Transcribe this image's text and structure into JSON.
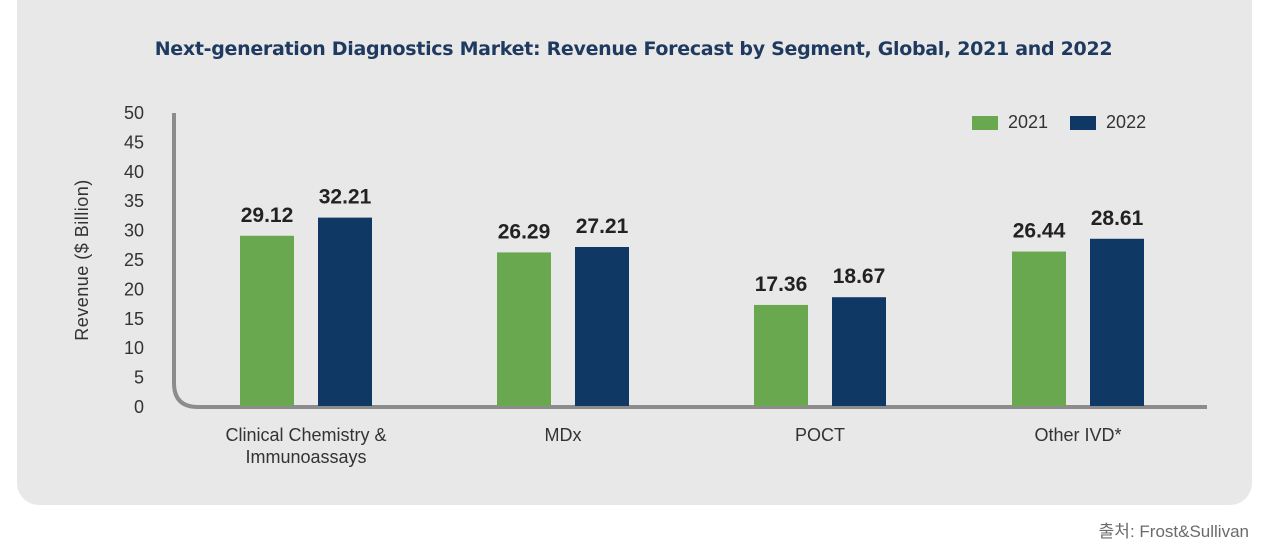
{
  "chart_data": {
    "type": "bar",
    "title": "Next-generation Diagnostics Market: Revenue Forecast by Segment, Global, 2021 and 2022",
    "ylabel": "Revenue ($ Billion)",
    "xlabel": "",
    "ylim": [
      0,
      50
    ],
    "yticks": [
      0,
      5,
      10,
      15,
      20,
      25,
      30,
      35,
      40,
      45,
      50
    ],
    "categories": [
      [
        "Clinical Chemistry &",
        "Immunoassays"
      ],
      [
        "MDx"
      ],
      [
        "POCT"
      ],
      [
        "Other IVD*"
      ]
    ],
    "series": [
      {
        "name": "2021",
        "color": "#6aa84f",
        "values": [
          29.12,
          26.29,
          17.36,
          26.44
        ],
        "labels": [
          "29.12",
          "26.29",
          "17.36",
          "26.44"
        ]
      },
      {
        "name": "2022",
        "color": "#0f3864",
        "values": [
          32.21,
          27.21,
          18.67,
          28.61
        ],
        "labels": [
          "32.21",
          "27.21",
          "18.67",
          "28.61"
        ]
      }
    ],
    "legend_position": "top-right",
    "grid": false
  },
  "source": "출처: Frost&Sullivan"
}
